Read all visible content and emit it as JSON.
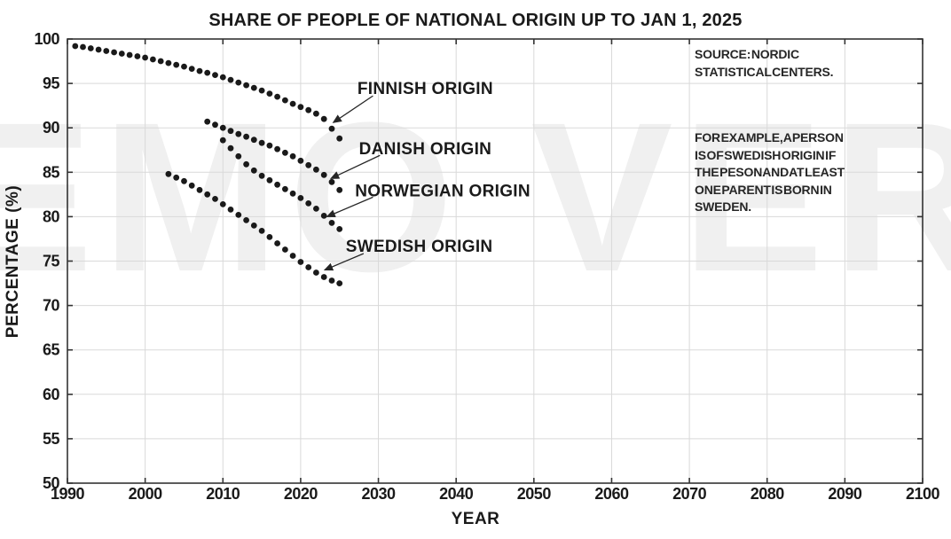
{
  "watermark": "EMO VER",
  "annotations": {
    "source": [
      "SOURCE: NORDIC",
      "STATISTICAL CENTERS."
    ],
    "example": [
      "FOR EXAMPLE, A PERSON",
      "IS OF SWEDISH ORIGIN IF",
      "THE PESON AND AT LEAST",
      "ONE PARENT IS BORN IN",
      "SWEDEN."
    ]
  },
  "chart_data": {
    "type": "scatter",
    "title": "SHARE OF PEOPLE OF NATIONAL ORIGIN UP TO JAN 1, 2025",
    "xlabel": "YEAR",
    "ylabel": "PERCENTAGE (%)",
    "xlim": [
      1990,
      2100
    ],
    "ylim": [
      50,
      100
    ],
    "xticks": [
      1990,
      2000,
      2010,
      2020,
      2030,
      2040,
      2050,
      2060,
      2070,
      2080,
      2090,
      2100
    ],
    "yticks": [
      50,
      55,
      60,
      65,
      70,
      75,
      80,
      85,
      90,
      95,
      100
    ],
    "grid": true,
    "legend_position": "inline-arrow-labels",
    "marker_color": "#1a1a1a",
    "axis_color": "#333333",
    "grid_color": "#d9d9d9",
    "series": [
      {
        "name": "FINNISH ORIGIN",
        "years": [
          1991,
          1992,
          1993,
          1994,
          1995,
          1996,
          1997,
          1998,
          1999,
          2000,
          2001,
          2002,
          2003,
          2004,
          2005,
          2006,
          2007,
          2008,
          2009,
          2010,
          2011,
          2012,
          2013,
          2014,
          2015,
          2016,
          2017,
          2018,
          2019,
          2020,
          2021,
          2022,
          2023,
          2024,
          2025
        ],
        "values": [
          99.2,
          99.1,
          98.95,
          98.8,
          98.65,
          98.5,
          98.35,
          98.2,
          98.05,
          97.9,
          97.7,
          97.5,
          97.3,
          97.1,
          96.9,
          96.65,
          96.4,
          96.2,
          95.95,
          95.7,
          95.4,
          95.1,
          94.8,
          94.5,
          94.2,
          93.85,
          93.5,
          93.1,
          92.7,
          92.35,
          92.0,
          91.6,
          91.0,
          89.9,
          88.8
        ],
        "label": {
          "text_pos": [
            2027.3,
            94.5
          ],
          "arrow_from": [
            2029.3,
            93.6
          ],
          "arrow_to": [
            2024.2,
            90.6
          ]
        }
      },
      {
        "name": "DANISH ORIGIN",
        "years": [
          2008,
          2009,
          2010,
          2011,
          2012,
          2013,
          2014,
          2015,
          2016,
          2017,
          2018,
          2019,
          2020,
          2021,
          2022,
          2023,
          2024,
          2025
        ],
        "values": [
          90.7,
          90.35,
          90.0,
          89.65,
          89.3,
          89.0,
          88.65,
          88.3,
          88.0,
          87.6,
          87.2,
          86.8,
          86.3,
          85.8,
          85.3,
          84.7,
          83.9,
          83.0
        ],
        "label": {
          "text_pos": [
            2027.5,
            87.7
          ],
          "arrow_from": [
            2030.2,
            86.9
          ],
          "arrow_to": [
            2023.9,
            84.3
          ]
        }
      },
      {
        "name": "NORWEGIAN ORIGIN",
        "years": [
          2010,
          2011,
          2012,
          2013,
          2014,
          2015,
          2016,
          2017,
          2018,
          2019,
          2020,
          2021,
          2022,
          2023,
          2024,
          2025
        ],
        "values": [
          88.6,
          87.7,
          86.8,
          85.9,
          85.2,
          84.6,
          84.1,
          83.6,
          83.1,
          82.6,
          82.1,
          81.5,
          80.9,
          80.1,
          79.3,
          78.6
        ],
        "label": {
          "text_pos": [
            2027.0,
            83.0
          ],
          "arrow_from": [
            2029.3,
            82.2
          ],
          "arrow_to": [
            2023.4,
            80.0
          ]
        }
      },
      {
        "name": "SWEDISH ORIGIN",
        "years": [
          2003,
          2004,
          2005,
          2006,
          2007,
          2008,
          2009,
          2010,
          2011,
          2012,
          2013,
          2014,
          2015,
          2016,
          2017,
          2018,
          2019,
          2020,
          2021,
          2022,
          2023,
          2024,
          2025
        ],
        "values": [
          84.8,
          84.4,
          84.0,
          83.5,
          83.0,
          82.5,
          82.0,
          81.4,
          80.8,
          80.2,
          79.6,
          79.0,
          78.4,
          77.7,
          77.0,
          76.3,
          75.6,
          74.9,
          74.3,
          73.7,
          73.2,
          72.8,
          72.5
        ],
        "label": {
          "text_pos": [
            2025.8,
            76.75
          ],
          "arrow_from": [
            2028.1,
            75.85
          ],
          "arrow_to": [
            2023.1,
            74.0
          ]
        }
      }
    ]
  }
}
